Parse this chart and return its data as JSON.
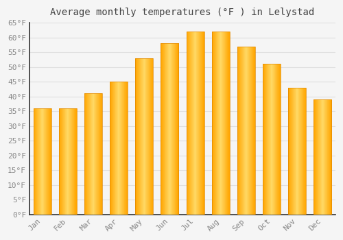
{
  "title": "Average monthly temperatures (°F ) in Lelystad",
  "months": [
    "Jan",
    "Feb",
    "Mar",
    "Apr",
    "May",
    "Jun",
    "Jul",
    "Aug",
    "Sep",
    "Oct",
    "Nov",
    "Dec"
  ],
  "values": [
    36,
    36,
    41,
    45,
    53,
    58,
    62,
    62,
    57,
    51,
    43,
    39
  ],
  "bar_color_center": "#FFD966",
  "bar_color_edge": "#FFA500",
  "background_color": "#F5F5F5",
  "grid_color": "#E0E0E0",
  "title_fontsize": 10,
  "tick_fontsize": 8,
  "ylim": [
    0,
    65
  ],
  "ytick_step": 5,
  "ylabel_suffix": "°F"
}
